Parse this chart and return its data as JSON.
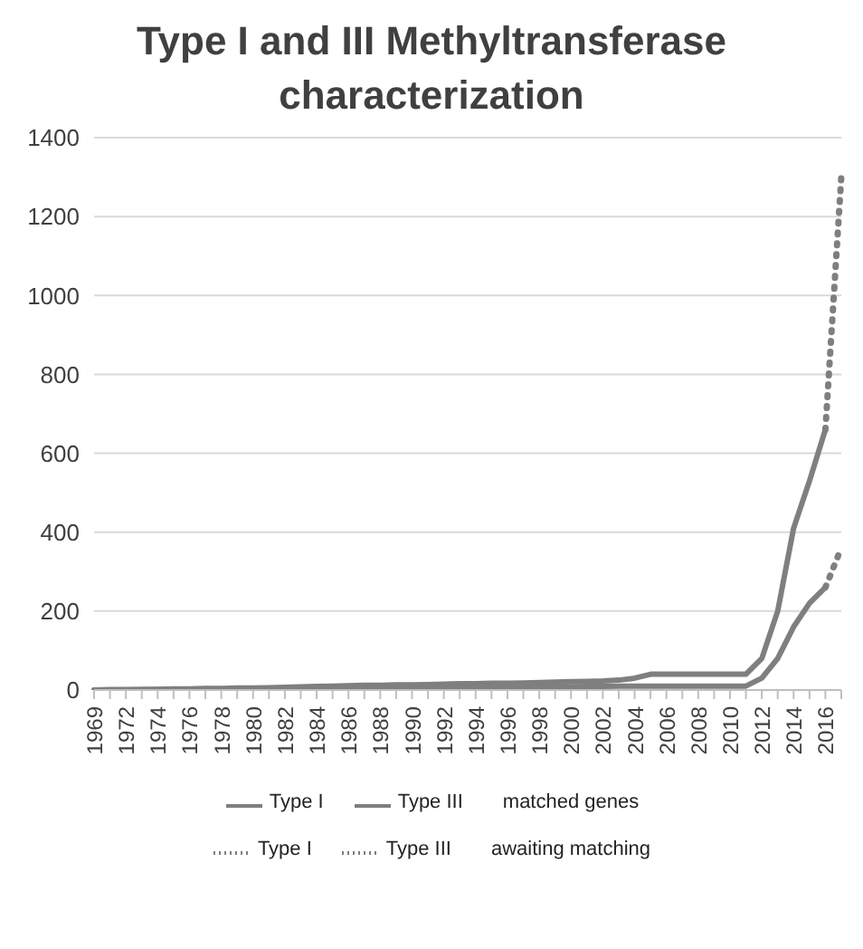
{
  "chart_data": {
    "type": "line",
    "title": "Type I and III Methyltransferase characterization",
    "categories": [
      "1969",
      null,
      "1972",
      null,
      "1974",
      null,
      "1976",
      null,
      "1978",
      null,
      "1980",
      null,
      "1982",
      null,
      "1984",
      null,
      "1986",
      null,
      "1988",
      null,
      "1990",
      null,
      "1992",
      null,
      "1994",
      null,
      "1996",
      null,
      "1998",
      null,
      "2000",
      null,
      "2002",
      null,
      "2004",
      null,
      "2006",
      null,
      "2008",
      null,
      "2010",
      null,
      "2012",
      null,
      "2014",
      null,
      "2016",
      null
    ],
    "series": [
      {
        "name": "Type I",
        "color": "#7f7f7f",
        "line_style": "solid",
        "values": [
          0,
          1,
          1,
          2,
          2,
          3,
          3,
          4,
          4,
          5,
          5,
          6,
          7,
          8,
          9,
          10,
          11,
          12,
          12,
          13,
          13,
          14,
          15,
          16,
          16,
          17,
          17,
          18,
          19,
          20,
          21,
          22,
          23,
          25,
          30,
          40,
          40,
          40,
          40,
          40,
          40,
          40,
          80,
          200,
          410,
          530,
          660,
          null
        ]
      },
      {
        "name": "Type III",
        "color": "#7f7f7f",
        "line_style": "solid",
        "values": [
          0,
          0,
          0,
          0,
          1,
          1,
          1,
          1,
          2,
          2,
          2,
          2,
          3,
          3,
          3,
          4,
          4,
          4,
          5,
          5,
          5,
          5,
          6,
          6,
          6,
          7,
          7,
          7,
          8,
          8,
          8,
          9,
          9,
          10,
          10,
          10,
          10,
          10,
          10,
          10,
          10,
          10,
          30,
          80,
          160,
          220,
          260,
          null
        ]
      },
      {
        "name": "Type I",
        "color": "#7f7f7f",
        "line_style": "dotted",
        "values": [
          null,
          null,
          null,
          null,
          null,
          null,
          null,
          null,
          null,
          null,
          null,
          null,
          null,
          null,
          null,
          null,
          null,
          null,
          null,
          null,
          null,
          null,
          null,
          null,
          null,
          null,
          null,
          null,
          null,
          null,
          null,
          null,
          null,
          null,
          null,
          null,
          null,
          null,
          null,
          null,
          null,
          null,
          null,
          null,
          null,
          null,
          660,
          1300
        ]
      },
      {
        "name": "Type III",
        "color": "#7f7f7f",
        "line_style": "dotted",
        "values": [
          null,
          null,
          null,
          null,
          null,
          null,
          null,
          null,
          null,
          null,
          null,
          null,
          null,
          null,
          null,
          null,
          null,
          null,
          null,
          null,
          null,
          null,
          null,
          null,
          null,
          null,
          null,
          null,
          null,
          null,
          null,
          null,
          null,
          null,
          null,
          null,
          null,
          null,
          null,
          null,
          null,
          null,
          null,
          null,
          null,
          null,
          260,
          360
        ]
      }
    ],
    "annotations": [
      "matched genes",
      "awaiting matching"
    ],
    "ylim": [
      0,
      1400
    ],
    "yticks": [
      0,
      200,
      400,
      600,
      800,
      1000,
      1200,
      1400
    ],
    "grid": "y",
    "legend": "bottom",
    "marker": "none"
  }
}
